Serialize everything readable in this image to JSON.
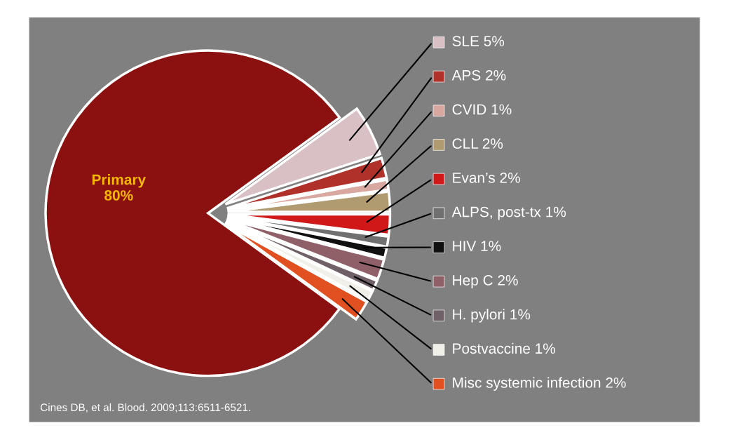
{
  "chart_data": {
    "type": "pie",
    "categories": [
      "Primary",
      "SLE",
      "APS",
      "CVID",
      "CLL",
      "Evan’s",
      "ALPS, post-tx",
      "HIV",
      "Hep C",
      "H. pylori",
      "Postvaccine",
      "Misc systemic infection"
    ],
    "values": [
      80,
      5,
      2,
      1,
      2,
      2,
      1,
      1,
      2,
      1,
      1,
      2
    ],
    "value_labels": [
      "80%",
      "5%",
      "2%",
      "1%",
      "2%",
      "2%",
      "1%",
      "1%",
      "2%",
      "1%",
      "1%",
      "2%"
    ],
    "colors": [
      "#8b1010",
      "#d9c0c4",
      "#b0302a",
      "#d8a8a0",
      "#b09a70",
      "#d01818",
      "#707070",
      "#101010",
      "#906068",
      "#706068",
      "#f0f0e8",
      "#e05020"
    ],
    "annotations": [
      "Cines DB, et al. Blood. 2009;113:6511-6521."
    ],
    "legend": "right"
  }
}
